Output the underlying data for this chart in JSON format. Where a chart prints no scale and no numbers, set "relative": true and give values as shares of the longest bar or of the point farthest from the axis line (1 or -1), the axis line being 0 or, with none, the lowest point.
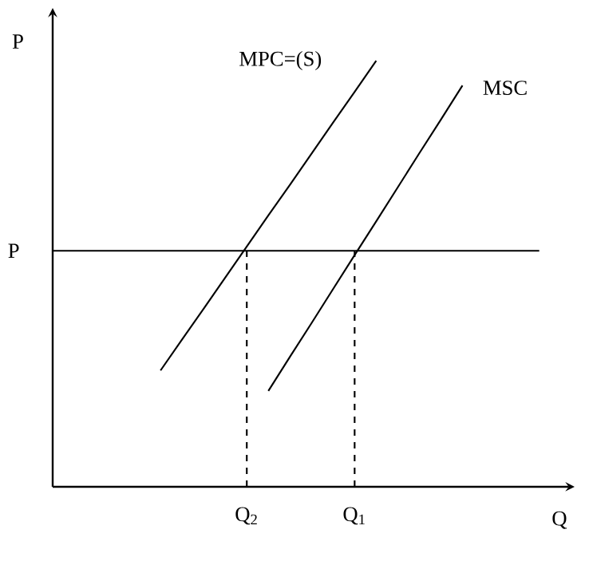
{
  "chart_data": {
    "type": "line",
    "relative": true,
    "xlabel": "Q",
    "ylabel": "P",
    "categories": [
      null,
      null,
      null,
      null,
      null,
      null,
      null,
      null,
      null,
      "Q$_{2}$",
      null,
      null,
      null,
      null,
      "Q$_{1}$",
      null,
      null,
      null,
      null,
      null,
      null,
      null,
      null,
      null,
      null
    ],
    "series": [
      {
        "name": "MPC=(S)",
        "color": "#000000",
        "values": [
          null,
          null,
          null,
          null,
          null,
          0.273,
          0.346,
          0.418,
          0.491,
          0.564,
          0.637,
          0.709,
          0.782,
          0.855,
          0.927,
          1.0,
          null,
          null,
          null,
          null,
          null,
          null,
          null,
          null,
          null
        ]
      },
      {
        "name": "MSC",
        "color": "#000000",
        "values": [
          null,
          null,
          null,
          null,
          null,
          null,
          null,
          null,
          null,
          null,
          0.225,
          0.305,
          0.384,
          0.464,
          0.544,
          0.623,
          0.703,
          0.783,
          0.862,
          0.942,
          null,
          null,
          null,
          null,
          null
        ]
      }
    ],
    "ref_lines": [
      {
        "axis": "y",
        "value": 0.554,
        "label": "P",
        "color": "#000000"
      },
      {
        "axis": "x",
        "value": "Q$_{2}$",
        "color": "#000000",
        "line_style": "dashed"
      },
      {
        "axis": "x",
        "value": "Q$_{1}$",
        "color": "#000000",
        "line_style": "dashed"
      }
    ],
    "marker": "none",
    "line_style": "solid"
  }
}
